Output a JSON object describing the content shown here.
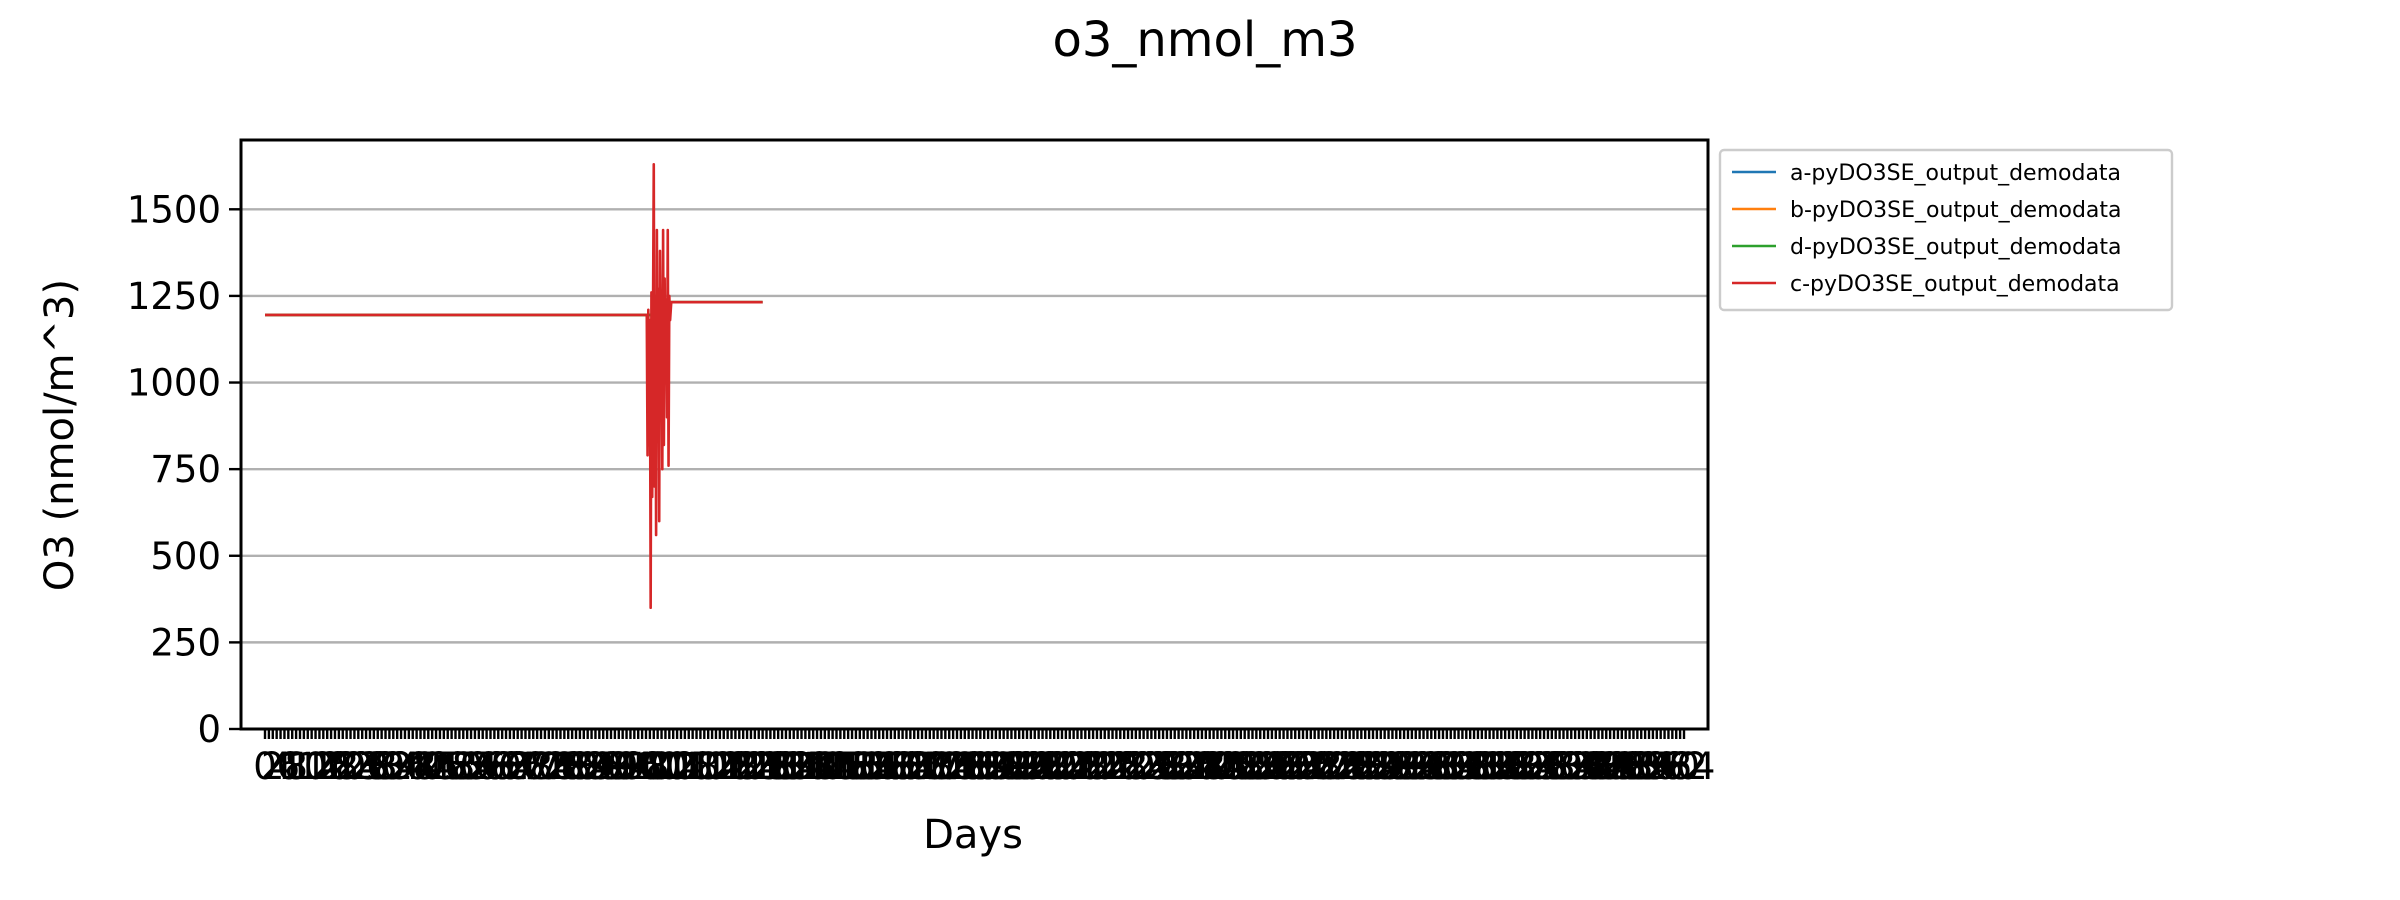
{
  "chart_data": {
    "type": "line",
    "title": "o3_nmol_m3",
    "xlabel": "Days",
    "ylabel": "O3 (nmol/m^3)",
    "xlim": [
      0,
      365
    ],
    "ylim": [
      0,
      1700
    ],
    "y_ticks": [
      0,
      250,
      500,
      750,
      1000,
      1250,
      1500
    ],
    "y_tick_labels": [
      "0",
      "250",
      "500",
      "750",
      "1000",
      "1250",
      "1500"
    ],
    "x_tick_count": 366,
    "x_tick_labels_illegible": true,
    "grid": "y",
    "legend_position": "outside-right-top",
    "series": [
      {
        "name": "a-pyDO3SE_output_demodata",
        "color": "#1f77b4",
        "x": [
          0,
          100,
          101,
          128
        ],
        "y": [
          1195,
          1195,
          1232,
          1232
        ]
      },
      {
        "name": "b-pyDO3SE_output_demodata",
        "color": "#ff7f0e",
        "x": [
          0,
          100,
          101,
          128
        ],
        "y": [
          1195,
          1195,
          1232,
          1232
        ]
      },
      {
        "name": "d-pyDO3SE_output_demodata",
        "color": "#2ca02c",
        "x": [
          0,
          100,
          101,
          128
        ],
        "y": [
          1195,
          1195,
          1232,
          1232
        ]
      },
      {
        "name": "c-pyDO3SE_output_demodata",
        "color": "#d62728",
        "x": [
          0,
          98.2,
          98.4,
          98.6,
          98.8,
          99.0,
          99.2,
          99.4,
          99.6,
          99.8,
          100.0,
          100.2,
          100.4,
          100.6,
          100.8,
          101.0,
          101.2,
          101.4,
          101.6,
          101.8,
          102.0,
          102.2,
          102.4,
          102.6,
          102.8,
          103.0,
          103.2,
          103.4,
          103.6,
          103.8,
          104.0,
          104.2,
          104.5,
          128
        ],
        "y": [
          1195,
          1195,
          790,
          1210,
          820,
          1180,
          350,
          1260,
          670,
          1190,
          1630,
          700,
          1250,
          560,
          1440,
          920,
          1270,
          600,
          1380,
          1100,
          1250,
          750,
          1440,
          820,
          1300,
          1000,
          1240,
          900,
          1440,
          760,
          1250,
          1180,
          1232,
          1232
        ]
      }
    ]
  }
}
